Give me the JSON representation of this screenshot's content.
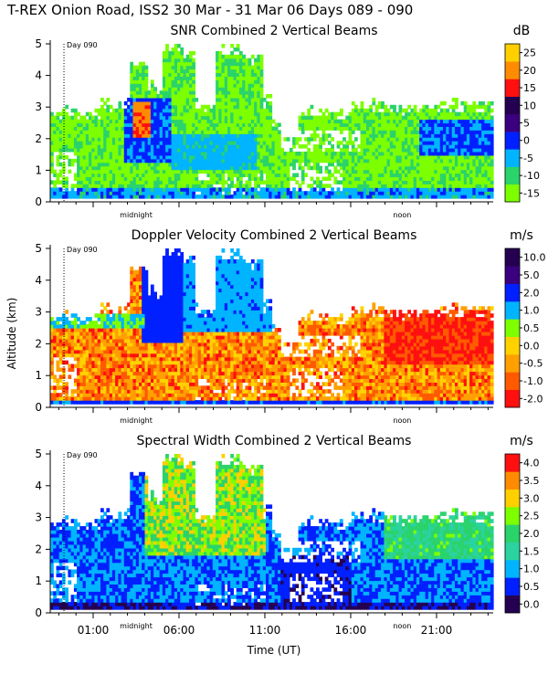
{
  "figure": {
    "title": "T-REX Onion Road, ISS2  30 Mar - 31 Mar 06 Days 089 - 090",
    "ylabel": "Altitude (km)",
    "xlabel": "Time (UT)",
    "day_marker": "Day 090",
    "midnight_label": "midnight",
    "noon_label": "noon"
  },
  "time_axis": {
    "range_hours": [
      -1.5,
      24.3
    ],
    "tick_labels": [
      "01:00",
      "06:00",
      "11:00",
      "16:00",
      "21:00"
    ],
    "tick_values": [
      1,
      6,
      11,
      16,
      21
    ],
    "day_marker_time": -0.7,
    "midnight_time": 3.5,
    "noon_time": 19.0
  },
  "chart_data": [
    {
      "type": "heatmap",
      "id": "snr",
      "title": "SNR Combined 2 Vertical Beams",
      "ylabel": "Altitude (km)",
      "ylim": [
        0,
        5
      ],
      "y_ticks": [
        "0",
        "1",
        "2",
        "3",
        "4",
        "5"
      ],
      "colorbar_unit": "dB",
      "colorbar_labels": [
        "-15",
        "-10",
        "-5",
        "0",
        "5",
        "10",
        "15",
        "20",
        "25"
      ],
      "colorbar_colors": [
        "#7dff00",
        "#2bd36b",
        "#00b4ff",
        "#0020ff",
        "#3a0080",
        "#250050",
        "#ff1010",
        "#ff8c00",
        "#ffd000"
      ],
      "field": "snr"
    },
    {
      "type": "heatmap",
      "id": "doppler",
      "title": "Doppler Velocity Combined 2 Vertical Beams",
      "ylabel": "Altitude (km)",
      "ylim": [
        0,
        5
      ],
      "y_ticks": [
        "0",
        "1",
        "2",
        "3",
        "4",
        "5"
      ],
      "colorbar_unit": "m/s",
      "colorbar_labels": [
        "-2.0",
        "-1.0",
        "-0.5",
        "0.0",
        "0.5",
        "1.0",
        "2.0",
        "5.0",
        "10.0"
      ],
      "colorbar_colors": [
        "#ff1010",
        "#ff5a00",
        "#ffa000",
        "#ffd200",
        "#7dff00",
        "#00b4ff",
        "#0020ff",
        "#3a0080",
        "#250050"
      ],
      "field": "doppler"
    },
    {
      "type": "heatmap",
      "id": "width",
      "title": "Spectral Width Combined 2 Vertical Beams",
      "ylabel": "Altitude (km)",
      "ylim": [
        0,
        5
      ],
      "y_ticks": [
        "0",
        "1",
        "2",
        "3",
        "4",
        "5"
      ],
      "colorbar_unit": "m/s",
      "colorbar_labels": [
        "0.0",
        "0.5",
        "1.0",
        "1.5",
        "2.0",
        "2.5",
        "3.0",
        "3.5",
        "4.0"
      ],
      "colorbar_colors": [
        "#250050",
        "#0020ff",
        "#00b4ff",
        "#2bd3a0",
        "#2bd36b",
        "#7dff00",
        "#ffd000",
        "#ff8c00",
        "#ff1010"
      ],
      "field": "width"
    }
  ]
}
